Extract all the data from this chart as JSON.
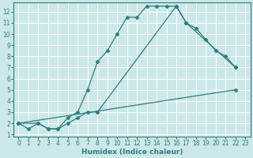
{
  "xlabel": "Humidex (Indice chaleur)",
  "background_color": "#cce8e8",
  "line_color": "#2e7d7d",
  "grid_color": "#ffffff",
  "xlim": [
    -0.5,
    23.5
  ],
  "ylim": [
    0.8,
    12.8
  ],
  "xticks": [
    0,
    1,
    2,
    3,
    4,
    5,
    6,
    7,
    8,
    9,
    10,
    11,
    12,
    13,
    14,
    15,
    16,
    17,
    18,
    19,
    20,
    21,
    22,
    23
  ],
  "yticks": [
    1,
    2,
    3,
    4,
    5,
    6,
    7,
    8,
    9,
    10,
    11,
    12
  ],
  "line1_x": [
    0,
    1,
    2,
    3,
    4,
    5,
    6,
    7,
    8,
    9,
    10,
    11,
    12,
    13,
    14,
    15,
    16,
    17,
    22
  ],
  "line1_y": [
    2,
    1.5,
    2,
    1.5,
    1.5,
    2.5,
    3,
    5,
    7.5,
    8.5,
    10,
    11.5,
    11.5,
    12.5,
    12.5,
    12.5,
    12.5,
    11,
    7
  ],
  "line2_x": [
    0,
    2,
    3,
    4,
    5,
    6,
    7,
    8,
    16,
    17,
    18,
    19,
    20,
    21,
    22
  ],
  "line2_y": [
    2,
    2,
    1.5,
    1.5,
    2,
    2.5,
    3,
    3,
    12.5,
    11,
    10.5,
    9.5,
    8.5,
    8,
    7
  ],
  "line3_x": [
    0,
    22
  ],
  "line3_y": [
    2,
    5
  ],
  "tickfontsize": 5.5,
  "xlabel_fontsize": 6.5
}
